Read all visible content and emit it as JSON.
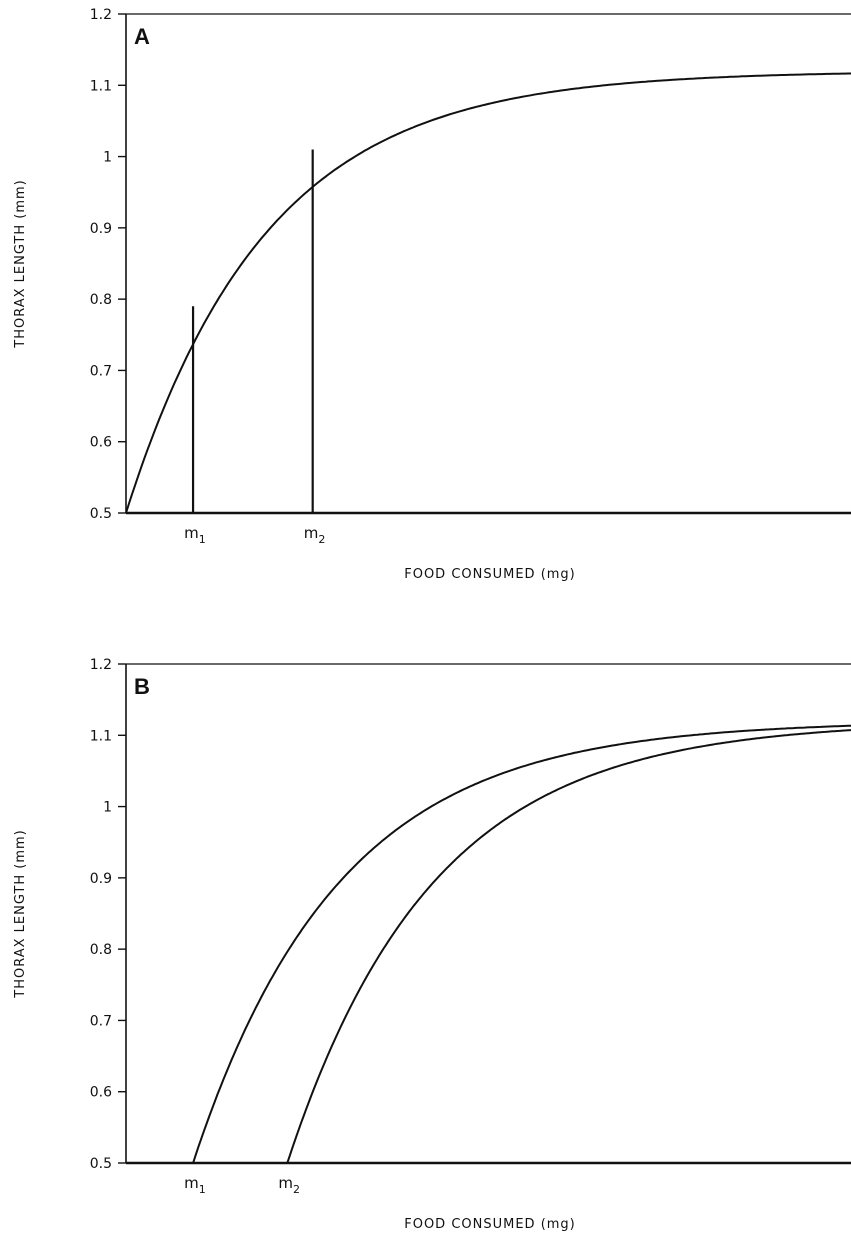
{
  "chart_data": [
    {
      "type": "line",
      "panel_label": "A",
      "xlabel": "FOOD CONSUMED (mg)",
      "ylabel": "THORAX LENGTH (mm)",
      "ylim": [
        0.5,
        1.2
      ],
      "yticks": [
        "0.5",
        "0.6",
        "0.7",
        "0.8",
        "0.9",
        "1",
        "1.1",
        "1.2"
      ],
      "x_markers": [
        {
          "label": "m",
          "sub": "1",
          "x": 0.0925,
          "y": 0.79
        },
        {
          "label": "m",
          "sub": "2",
          "x": 0.2575,
          "y": 1.01
        }
      ],
      "series": [
        {
          "x_start": 0,
          "asymptote": 1.12,
          "rate": 5.2
        }
      ],
      "grid": false
    },
    {
      "type": "line",
      "panel_label": "B",
      "xlabel": "FOOD CONSUMED (mg)",
      "ylabel": "THORAX LENGTH (mm)",
      "ylim": [
        0.5,
        1.2
      ],
      "yticks": [
        "0.5",
        "0.6",
        "0.7",
        "0.8",
        "0.9",
        "1",
        "1.1",
        "1.2"
      ],
      "x_markers": [
        {
          "label": "m",
          "sub": "1",
          "x": 0.0925
        },
        {
          "label": "m",
          "sub": "2",
          "x": 0.2225
        }
      ],
      "series": [
        {
          "x_start": 0.0925,
          "asymptote": 1.12,
          "rate": 5.0
        },
        {
          "x_start": 0.2225,
          "asymptote": 1.12,
          "rate": 5.0
        }
      ],
      "grid": false
    }
  ]
}
